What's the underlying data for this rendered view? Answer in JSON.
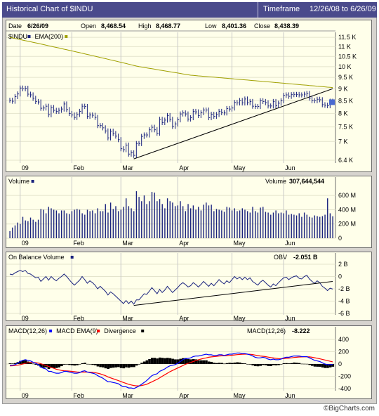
{
  "header": {
    "title": "Historical Chart of $INDU",
    "timeframe_label": "Timeframe",
    "timeframe_range": "12/26/08 to 6/26/09"
  },
  "quote": {
    "date_label": "Date",
    "date": "6/26/09",
    "open_label": "Open",
    "open": "8,468.54",
    "high_label": "High",
    "high": "8,468.77",
    "low_label": "Low",
    "low": "8,401.36",
    "close_label": "Close",
    "close": "8,438.39"
  },
  "colors": {
    "price": "#1a237e",
    "ema": "#a0a000",
    "volume": "#1a237e",
    "obv": "#1a237e",
    "macd": "#0000ff",
    "macd_ema": "#ff0000",
    "divergence": "#000000",
    "panel_bg": "#ffffea"
  },
  "footer": "©BigCharts.com",
  "chart_data": [
    {
      "type": "line",
      "title": "$INDU",
      "legend": [
        {
          "label": "$INDU",
          "color": "#1a237e"
        },
        {
          "label": "EMA(200)",
          "color": "#a0a000"
        }
      ],
      "x_tick_labels": [
        "09",
        "Feb",
        "Mar",
        "Apr",
        "May",
        "Jun"
      ],
      "y_tick_labels": [
        "11.5 K",
        "11 K",
        "10.5 K",
        "10 K",
        "9.5 K",
        "9 K",
        "8.5 K",
        "8 K",
        "7.5 K",
        "7 K",
        "6.4 K"
      ],
      "y_scale": "log",
      "ylim": [
        6400,
        11700
      ],
      "x": [
        "12/26/08",
        "12/29/08",
        "12/30/08",
        "12/31/08",
        "1/2/09",
        "1/5/09",
        "1/6/09",
        "1/7/09",
        "1/8/09",
        "1/9/09",
        "1/12/09",
        "1/13/09",
        "1/14/09",
        "1/15/09",
        "1/16/09",
        "1/20/09",
        "1/21/09",
        "1/22/09",
        "1/23/09",
        "1/26/09",
        "1/27/09",
        "1/28/09",
        "1/29/09",
        "1/30/09",
        "2/2/09",
        "2/3/09",
        "2/4/09",
        "2/5/09",
        "2/6/09",
        "2/9/09",
        "2/10/09",
        "2/11/09",
        "2/12/09",
        "2/13/09",
        "2/17/09",
        "2/18/09",
        "2/19/09",
        "2/20/09",
        "2/23/09",
        "2/24/09",
        "2/25/09",
        "2/26/09",
        "2/27/09",
        "3/2/09",
        "3/3/09",
        "3/4/09",
        "3/5/09",
        "3/6/09",
        "3/9/09",
        "3/10/09",
        "3/11/09",
        "3/12/09",
        "3/13/09",
        "3/16/09",
        "3/17/09",
        "3/18/09",
        "3/19/09",
        "3/20/09",
        "3/23/09",
        "3/24/09",
        "3/25/09",
        "3/26/09",
        "3/27/09",
        "3/30/09",
        "3/31/09",
        "4/1/09",
        "4/2/09",
        "4/3/09",
        "4/6/09",
        "4/7/09",
        "4/8/09",
        "4/9/09",
        "4/13/09",
        "4/14/09",
        "4/15/09",
        "4/16/09",
        "4/17/09",
        "4/20/09",
        "4/21/09",
        "4/22/09",
        "4/23/09",
        "4/24/09",
        "4/27/09",
        "4/28/09",
        "4/29/09",
        "4/30/09",
        "5/1/09",
        "5/4/09",
        "5/5/09",
        "5/6/09",
        "5/7/09",
        "5/8/09",
        "5/11/09",
        "5/12/09",
        "5/13/09",
        "5/14/09",
        "5/15/09",
        "5/18/09",
        "5/19/09",
        "5/20/09",
        "5/21/09",
        "5/22/09",
        "5/26/09",
        "5/27/09",
        "5/28/09",
        "5/29/09",
        "6/1/09",
        "6/2/09",
        "6/3/09",
        "6/4/09",
        "6/5/09",
        "6/8/09",
        "6/9/09",
        "6/10/09",
        "6/11/09",
        "6/12/09",
        "6/15/09",
        "6/16/09",
        "6/17/09",
        "6/18/09",
        "6/19/09",
        "6/22/09",
        "6/23/09",
        "6/24/09",
        "6/25/09",
        "6/26/09"
      ],
      "close": [
        8520,
        8480,
        8670,
        8780,
        9030,
        9000,
        9020,
        8770,
        8740,
        8600,
        8470,
        8450,
        8200,
        8210,
        8280,
        7950,
        8230,
        8120,
        8080,
        8120,
        8170,
        8370,
        8150,
        8000,
        7940,
        7850,
        7960,
        8080,
        8280,
        8270,
        7890,
        7940,
        7930,
        7850,
        7550,
        7550,
        7470,
        7360,
        7120,
        7350,
        7270,
        7180,
        7060,
        6760,
        6730,
        6880,
        6590,
        6630,
        6550,
        6930,
        6930,
        7170,
        7220,
        7220,
        7400,
        7490,
        7400,
        7280,
        7780,
        7660,
        7750,
        7920,
        7780,
        7520,
        7610,
        7760,
        7980,
        8020,
        7980,
        7790,
        7840,
        8080,
        8060,
        7920,
        8030,
        8130,
        8130,
        7840,
        7970,
        7890,
        7960,
        8080,
        8030,
        8020,
        8190,
        8170,
        8210,
        8430,
        8410,
        8510,
        8410,
        8570,
        8420,
        8470,
        8280,
        8270,
        8270,
        8500,
        8470,
        8420,
        8290,
        8290,
        8470,
        8300,
        8400,
        8500,
        8720,
        8740,
        8680,
        8750,
        8760,
        8760,
        8740,
        8740,
        8770,
        8800,
        8610,
        8500,
        8500,
        8560,
        8540,
        8340,
        8320,
        8300,
        8480,
        8440
      ],
      "ema200": [
        11500,
        11470,
        11440,
        11410,
        11380,
        11350,
        11320,
        11290,
        11260,
        11230,
        11200,
        11170,
        11140,
        11110,
        11080,
        11050,
        11020,
        10990,
        10960,
        10930,
        10900,
        10870,
        10840,
        10810,
        10780,
        10750,
        10720,
        10690,
        10660,
        10630,
        10600,
        10570,
        10540,
        10510,
        10480,
        10450,
        10420,
        10390,
        10360,
        10330,
        10300,
        10270,
        10240,
        10210,
        10180,
        10150,
        10120,
        10090,
        10060,
        10030,
        10000,
        9980,
        9960,
        9940,
        9920,
        9900,
        9880,
        9860,
        9840,
        9820,
        9800,
        9780,
        9760,
        9740,
        9720,
        9700,
        9680,
        9660,
        9640,
        9620,
        9600,
        9590,
        9580,
        9570,
        9560,
        9550,
        9540,
        9530,
        9520,
        9510,
        9500,
        9490,
        9480,
        9470,
        9460,
        9450,
        9440,
        9430,
        9420,
        9410,
        9400,
        9390,
        9380,
        9370,
        9360,
        9350,
        9340,
        9330,
        9320,
        9310,
        9300,
        9290,
        9280,
        9270,
        9260,
        9250,
        9240,
        9230,
        9220,
        9210,
        9200,
        9190,
        9180,
        9170,
        9160,
        9150,
        9140,
        9130,
        9120,
        9110,
        9100,
        9090,
        9080,
        9070,
        9060,
        9050
      ],
      "trendline": [
        [
          "3/9/09",
          6440
        ],
        [
          "6/26/09",
          9000
        ]
      ]
    },
    {
      "type": "bar",
      "title": "Volume",
      "legend": [
        {
          "label": "Volume",
          "color": "#1a237e"
        }
      ],
      "readout_label": "Volume",
      "readout_value": "307,644,544",
      "y_tick_labels": [
        "600 M",
        "400 M",
        "200 M",
        "0"
      ],
      "ylim": [
        0,
        720
      ],
      "unit": "M",
      "x_tick_labels": [
        "09",
        "Feb",
        "Mar",
        "Apr",
        "May",
        "Jun"
      ],
      "values": [
        100,
        150,
        180,
        220,
        200,
        300,
        250,
        240,
        290,
        260,
        230,
        260,
        410,
        400,
        350,
        440,
        420,
        400,
        390,
        350,
        390,
        390,
        350,
        340,
        380,
        400,
        410,
        400,
        350,
        330,
        400,
        380,
        390,
        350,
        420,
        380,
        380,
        480,
        360,
        500,
        410,
        450,
        380,
        400,
        440,
        560,
        450,
        420,
        380,
        660,
        580,
        520,
        600,
        480,
        520,
        650,
        640,
        520,
        550,
        480,
        420,
        560,
        520,
        500,
        450,
        460,
        520,
        450,
        380,
        480,
        420,
        460,
        400,
        440,
        390,
        470,
        500,
        460,
        470,
        380,
        410,
        400,
        390,
        370,
        440,
        430,
        390,
        420,
        380,
        390,
        420,
        400,
        380,
        360,
        440,
        380,
        360,
        430,
        440,
        370,
        360,
        330,
        360,
        390,
        350,
        360,
        350,
        390,
        330,
        340,
        330,
        320,
        350,
        300,
        360,
        330,
        300,
        290,
        320,
        310,
        300,
        310,
        330,
        560,
        350,
        308
      ]
    },
    {
      "type": "line",
      "title": "On Balance Volume",
      "legend": [
        {
          "label": "On Balance Volume",
          "color": "#1a237e"
        }
      ],
      "readout_label": "OBV",
      "readout_value": "-2.051 B",
      "y_tick_labels": [
        "2 B",
        "0",
        "-2 B",
        "-4 B",
        "-6 B"
      ],
      "ylim": [
        -6,
        3
      ],
      "unit": "B",
      "x_tick_labels": [
        "09",
        "Feb",
        "Mar",
        "Apr",
        "May",
        "Jun"
      ],
      "values": [
        0.4,
        0.3,
        0.6,
        0.8,
        1.0,
        0.8,
        1.0,
        0.5,
        0.4,
        0.1,
        -0.2,
        -0.1,
        -0.8,
        -0.4,
        0.0,
        -0.6,
        0.0,
        -0.4,
        -0.7,
        -0.3,
        0.0,
        0.4,
        0.0,
        -0.5,
        -1.0,
        -1.4,
        -1.0,
        -0.6,
        0.0,
        -0.5,
        -1.1,
        -0.7,
        -1.0,
        -1.4,
        -2.0,
        -1.6,
        -2.0,
        -2.4,
        -3.0,
        -2.5,
        -2.8,
        -3.2,
        -3.6,
        -4.0,
        -4.4,
        -3.9,
        -4.4,
        -4.0,
        -4.5,
        -3.8,
        -3.8,
        -3.3,
        -2.8,
        -2.9,
        -2.4,
        -1.8,
        -2.3,
        -2.8,
        -2.1,
        -2.6,
        -2.2,
        -1.6,
        -2.1,
        -2.6,
        -2.2,
        -1.8,
        -1.3,
        -1.0,
        -1.3,
        -1.7,
        -1.5,
        -1.0,
        -1.3,
        -1.7,
        -1.3,
        -0.8,
        -1.2,
        -1.6,
        -1.1,
        -1.5,
        -1.0,
        -0.5,
        -0.9,
        -1.2,
        -0.7,
        -1.0,
        -0.5,
        0.0,
        -0.4,
        -0.1,
        -0.5,
        -0.1,
        -0.5,
        -0.2,
        -0.8,
        -1.1,
        -1.4,
        -0.9,
        -0.6,
        -1.0,
        -1.4,
        -1.7,
        -1.2,
        -1.5,
        -1.0,
        -0.6,
        -0.2,
        -0.1,
        -0.5,
        -0.2,
        0.0,
        0.1,
        -0.3,
        -0.4,
        0.0,
        0.2,
        -0.4,
        -0.8,
        -1.1,
        -0.7,
        -1.0,
        -1.6,
        -1.9,
        -2.3,
        -1.9,
        -2.051
      ],
      "trendline": [
        [
          "3/9/09",
          -4.7
        ],
        [
          "6/26/09",
          -0.8
        ]
      ]
    },
    {
      "type": "line",
      "title": "MACD",
      "legend": [
        {
          "label": "MACD(12,26)",
          "color": "#0000ff"
        },
        {
          "label": "MACD EMA(9)",
          "color": "#ff0000"
        },
        {
          "label": "Divergence",
          "color": "#000000"
        }
      ],
      "readout_label": "MACD(12,26)",
      "readout_value": "-8.222",
      "y_tick_labels": [
        "400",
        "200",
        "0",
        "-200",
        "-400"
      ],
      "ylim": [
        -420,
        420
      ],
      "x_tick_labels": [
        "09",
        "Feb",
        "Mar",
        "Apr",
        "May",
        "Jun"
      ],
      "macd": [
        -20,
        -20,
        -10,
        10,
        40,
        60,
        70,
        60,
        50,
        30,
        10,
        -10,
        -50,
        -70,
        -80,
        -120,
        -120,
        -140,
        -150,
        -150,
        -140,
        -120,
        -120,
        -130,
        -140,
        -150,
        -150,
        -140,
        -120,
        -110,
        -130,
        -140,
        -150,
        -160,
        -190,
        -210,
        -230,
        -260,
        -290,
        -290,
        -300,
        -310,
        -320,
        -350,
        -370,
        -370,
        -390,
        -390,
        -400,
        -380,
        -360,
        -330,
        -300,
        -270,
        -230,
        -190,
        -170,
        -160,
        -120,
        -100,
        -80,
        -50,
        -30,
        -20,
        -10,
        10,
        40,
        70,
        90,
        90,
        100,
        120,
        130,
        130,
        140,
        150,
        160,
        150,
        150,
        140,
        140,
        150,
        150,
        140,
        150,
        160,
        160,
        170,
        180,
        180,
        170,
        170,
        160,
        150,
        130,
        110,
        100,
        100,
        110,
        100,
        80,
        70,
        80,
        70,
        70,
        80,
        100,
        110,
        110,
        120,
        130,
        130,
        130,
        120,
        120,
        120,
        100,
        80,
        60,
        50,
        40,
        20,
        0,
        -10,
        -10,
        -8
      ],
      "macd_ema": [
        -30,
        -28,
        -25,
        -20,
        -10,
        0,
        10,
        20,
        25,
        25,
        22,
        15,
        5,
        -10,
        -25,
        -40,
        -55,
        -70,
        -85,
        -95,
        -105,
        -110,
        -112,
        -115,
        -120,
        -125,
        -130,
        -133,
        -132,
        -130,
        -131,
        -133,
        -136,
        -140,
        -150,
        -160,
        -175,
        -190,
        -210,
        -225,
        -240,
        -255,
        -270,
        -285,
        -300,
        -315,
        -330,
        -340,
        -350,
        -355,
        -355,
        -350,
        -340,
        -330,
        -310,
        -290,
        -270,
        -250,
        -225,
        -200,
        -175,
        -150,
        -125,
        -105,
        -85,
        -65,
        -45,
        -25,
        -5,
        10,
        25,
        40,
        55,
        70,
        80,
        90,
        100,
        110,
        115,
        120,
        125,
        130,
        132,
        134,
        136,
        140,
        143,
        147,
        152,
        156,
        158,
        160,
        160,
        158,
        153,
        145,
        137,
        130,
        126,
        120,
        112,
        104,
        98,
        92,
        88,
        86,
        88,
        92,
        96,
        100,
        106,
        110,
        114,
        116,
        117,
        118,
        115,
        110,
        102,
        94,
        85,
        76,
        65,
        55,
        45,
        36
      ],
      "divergence": [
        10,
        8,
        15,
        30,
        50,
        60,
        60,
        40,
        25,
        5,
        -12,
        -25,
        -55,
        -60,
        -55,
        -80,
        -65,
        -70,
        -65,
        -55,
        -35,
        -10,
        -8,
        -15,
        -20,
        -25,
        -20,
        -7,
        12,
        20,
        1,
        -7,
        -14,
        -20,
        -40,
        -50,
        -55,
        -70,
        -80,
        -65,
        -60,
        -55,
        -50,
        -65,
        -70,
        -55,
        -60,
        -50,
        -50,
        -25,
        -5,
        20,
        40,
        60,
        80,
        100,
        100,
        90,
        105,
        100,
        95,
        100,
        95,
        85,
        75,
        75,
        85,
        95,
        95,
        80,
        75,
        80,
        75,
        60,
        60,
        60,
        60,
        40,
        35,
        20,
        15,
        20,
        18,
        6,
        14,
        20,
        17,
        23,
        28,
        24,
        12,
        10,
        0,
        -8,
        -23,
        -35,
        -37,
        -30,
        -16,
        -20,
        -32,
        -34,
        -18,
        -22,
        -18,
        -6,
        12,
        14,
        10,
        14,
        24,
        20,
        16,
        4,
        3,
        2,
        -15,
        -30,
        -42,
        -44,
        -45,
        -56,
        -65,
        -65,
        -55,
        -44
      ]
    }
  ]
}
